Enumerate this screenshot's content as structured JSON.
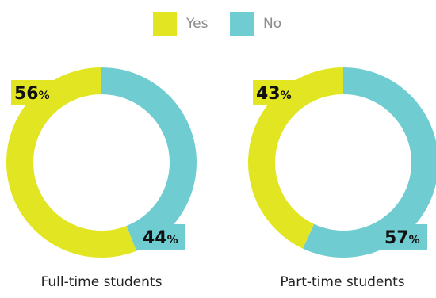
{
  "legend": {
    "yes": {
      "label": "Yes",
      "color": "#e2e622"
    },
    "no": {
      "label": "No",
      "color": "#6fccd1"
    }
  },
  "chart_data": [
    {
      "type": "pie",
      "title": "Full-time students",
      "slices": [
        {
          "name": "Yes",
          "value": 56,
          "label": "56",
          "unit": "%",
          "color": "#e2e622"
        },
        {
          "name": "No",
          "value": 44,
          "label": "44",
          "unit": "%",
          "color": "#6fccd1"
        }
      ]
    },
    {
      "type": "pie",
      "title": "Part-time students",
      "slices": [
        {
          "name": "Yes",
          "value": 43,
          "label": "43",
          "unit": "%",
          "color": "#e2e622"
        },
        {
          "name": "No",
          "value": 57,
          "label": "57",
          "unit": "%",
          "color": "#6fccd1"
        }
      ]
    }
  ]
}
